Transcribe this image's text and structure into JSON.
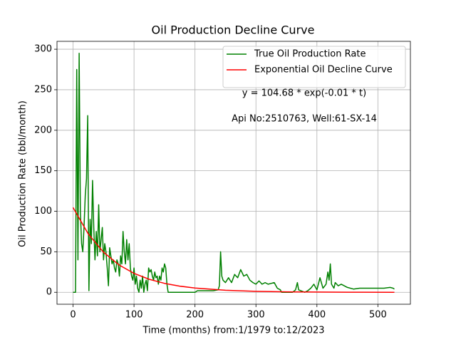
{
  "chart_data": {
    "type": "line",
    "title": "Oil Production Decline Curve",
    "x_label": "Time (months) from:1/1979 to:12/2023",
    "y_label": "Oil Production Rate (bbl/month)",
    "annotations": [
      "y = 104.68 * exp(-0.01 * t)",
      "Api No:2510763, Well:61-SX-14"
    ],
    "xlim": [
      -26.35,
      553.35
    ],
    "ylim": [
      -14.75,
      309.75
    ],
    "xticks": [
      0,
      100,
      200,
      300,
      400,
      500
    ],
    "yticks": [
      0,
      50,
      100,
      150,
      200,
      250,
      300
    ],
    "grid": true,
    "legend": "upper right",
    "series": [
      {
        "name": "True Oil Production Rate",
        "color": "#008000",
        "x": [
          0,
          4,
          6,
          8,
          10,
          12,
          14,
          16,
          18,
          20,
          22,
          24,
          26,
          28,
          30,
          32,
          34,
          36,
          38,
          40,
          42,
          44,
          46,
          48,
          50,
          52,
          54,
          56,
          58,
          60,
          62,
          64,
          66,
          68,
          70,
          72,
          74,
          76,
          78,
          80,
          82,
          84,
          86,
          88,
          90,
          92,
          94,
          96,
          98,
          100,
          102,
          104,
          106,
          108,
          110,
          112,
          114,
          116,
          118,
          120,
          122,
          124,
          126,
          128,
          130,
          132,
          134,
          136,
          138,
          140,
          142,
          144,
          146,
          148,
          150,
          152,
          154,
          156,
          160,
          180,
          200,
          204,
          230,
          238,
          240,
          242,
          244,
          246,
          250,
          255,
          260,
          265,
          270,
          275,
          280,
          285,
          290,
          295,
          300,
          305,
          310,
          315,
          320,
          330,
          335,
          340,
          342,
          350,
          360,
          365,
          368,
          370,
          380,
          385,
          390,
          395,
          400,
          405,
          410,
          415,
          418,
          420,
          422,
          424,
          428,
          430,
          435,
          440,
          450,
          460,
          470,
          480,
          490,
          500,
          510,
          520,
          525,
          527
        ],
        "values": [
          0,
          0,
          275,
          40,
          295,
          100,
          60,
          50,
          80,
          120,
          140,
          218,
          2,
          90,
          60,
          138,
          80,
          40,
          75,
          45,
          108,
          50,
          65,
          80,
          40,
          60,
          50,
          30,
          8,
          55,
          45,
          35,
          40,
          30,
          25,
          40,
          35,
          20,
          45,
          35,
          75,
          50,
          35,
          65,
          40,
          60,
          30,
          20,
          15,
          30,
          10,
          20,
          5,
          0,
          15,
          5,
          20,
          0,
          10,
          15,
          2,
          30,
          25,
          28,
          20,
          15,
          25,
          18,
          20,
          10,
          20,
          15,
          30,
          25,
          35,
          30,
          10,
          0,
          0,
          0,
          0,
          2,
          2,
          3,
          8,
          50,
          20,
          15,
          12,
          18,
          12,
          22,
          18,
          28,
          20,
          22,
          15,
          12,
          10,
          14,
          10,
          12,
          10,
          12,
          5,
          3,
          0,
          0,
          0,
          3,
          12,
          3,
          0,
          2,
          5,
          10,
          3,
          18,
          5,
          10,
          25,
          15,
          35,
          10,
          5,
          12,
          8,
          10,
          6,
          4,
          5,
          5,
          5,
          5,
          5,
          6,
          5,
          4
        ]
      },
      {
        "name": "Exponential Oil Decline Curve",
        "color": "#ff0000",
        "x": [
          0,
          25,
          50,
          75,
          100,
          125,
          150,
          175,
          200,
          250,
          300,
          350,
          400,
          450,
          527
        ],
        "values": [
          104.68,
          71.95,
          49.45,
          33.99,
          23.36,
          16.06,
          11.03,
          7.58,
          5.21,
          2.46,
          1.16,
          0.55,
          0.26,
          0.12,
          0.04
        ]
      }
    ]
  }
}
